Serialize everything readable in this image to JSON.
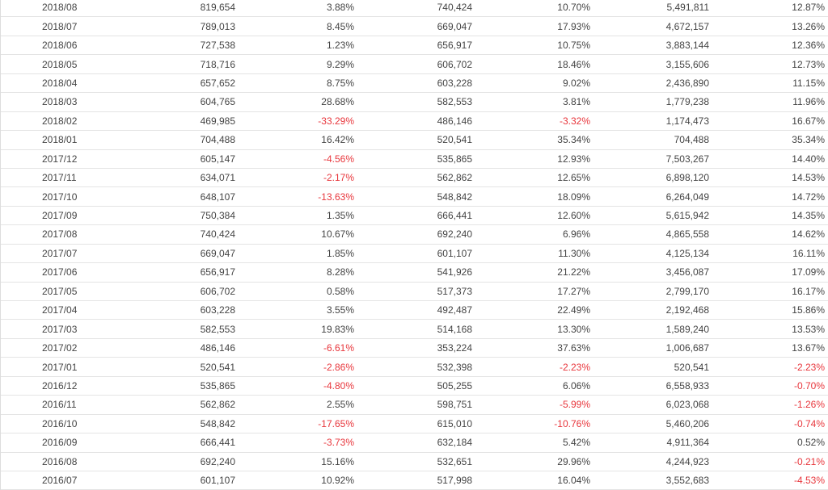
{
  "table": {
    "rows": [
      [
        "2018/08",
        "819,654",
        "3.88%",
        "740,424",
        "10.70%",
        "5,491,811",
        "12.87%"
      ],
      [
        "2018/07",
        "789,013",
        "8.45%",
        "669,047",
        "17.93%",
        "4,672,157",
        "13.26%"
      ],
      [
        "2018/06",
        "727,538",
        "1.23%",
        "656,917",
        "10.75%",
        "3,883,144",
        "12.36%"
      ],
      [
        "2018/05",
        "718,716",
        "9.29%",
        "606,702",
        "18.46%",
        "3,155,606",
        "12.73%"
      ],
      [
        "2018/04",
        "657,652",
        "8.75%",
        "603,228",
        "9.02%",
        "2,436,890",
        "11.15%"
      ],
      [
        "2018/03",
        "604,765",
        "28.68%",
        "582,553",
        "3.81%",
        "1,779,238",
        "11.96%"
      ],
      [
        "2018/02",
        "469,985",
        "-33.29%",
        "486,146",
        "-3.32%",
        "1,174,473",
        "16.67%"
      ],
      [
        "2018/01",
        "704,488",
        "16.42%",
        "520,541",
        "35.34%",
        "704,488",
        "35.34%"
      ],
      [
        "2017/12",
        "605,147",
        "-4.56%",
        "535,865",
        "12.93%",
        "7,503,267",
        "14.40%"
      ],
      [
        "2017/11",
        "634,071",
        "-2.17%",
        "562,862",
        "12.65%",
        "6,898,120",
        "14.53%"
      ],
      [
        "2017/10",
        "648,107",
        "-13.63%",
        "548,842",
        "18.09%",
        "6,264,049",
        "14.72%"
      ],
      [
        "2017/09",
        "750,384",
        "1.35%",
        "666,441",
        "12.60%",
        "5,615,942",
        "14.35%"
      ],
      [
        "2017/08",
        "740,424",
        "10.67%",
        "692,240",
        "6.96%",
        "4,865,558",
        "14.62%"
      ],
      [
        "2017/07",
        "669,047",
        "1.85%",
        "601,107",
        "11.30%",
        "4,125,134",
        "16.11%"
      ],
      [
        "2017/06",
        "656,917",
        "8.28%",
        "541,926",
        "21.22%",
        "3,456,087",
        "17.09%"
      ],
      [
        "2017/05",
        "606,702",
        "0.58%",
        "517,373",
        "17.27%",
        "2,799,170",
        "16.17%"
      ],
      [
        "2017/04",
        "603,228",
        "3.55%",
        "492,487",
        "22.49%",
        "2,192,468",
        "15.86%"
      ],
      [
        "2017/03",
        "582,553",
        "19.83%",
        "514,168",
        "13.30%",
        "1,589,240",
        "13.53%"
      ],
      [
        "2017/02",
        "486,146",
        "-6.61%",
        "353,224",
        "37.63%",
        "1,006,687",
        "13.67%"
      ],
      [
        "2017/01",
        "520,541",
        "-2.86%",
        "532,398",
        "-2.23%",
        "520,541",
        "-2.23%"
      ],
      [
        "2016/12",
        "535,865",
        "-4.80%",
        "505,255",
        "6.06%",
        "6,558,933",
        "-0.70%"
      ],
      [
        "2016/11",
        "562,862",
        "2.55%",
        "598,751",
        "-5.99%",
        "6,023,068",
        "-1.26%"
      ],
      [
        "2016/10",
        "548,842",
        "-17.65%",
        "615,010",
        "-10.76%",
        "5,460,206",
        "-0.74%"
      ],
      [
        "2016/09",
        "666,441",
        "-3.73%",
        "632,184",
        "5.42%",
        "4,911,364",
        "0.52%"
      ],
      [
        "2016/08",
        "692,240",
        "15.16%",
        "532,651",
        "29.96%",
        "4,244,923",
        "-0.21%"
      ],
      [
        "2016/07",
        "601,107",
        "10.92%",
        "517,998",
        "16.04%",
        "3,552,683",
        "-4.53%"
      ]
    ]
  }
}
